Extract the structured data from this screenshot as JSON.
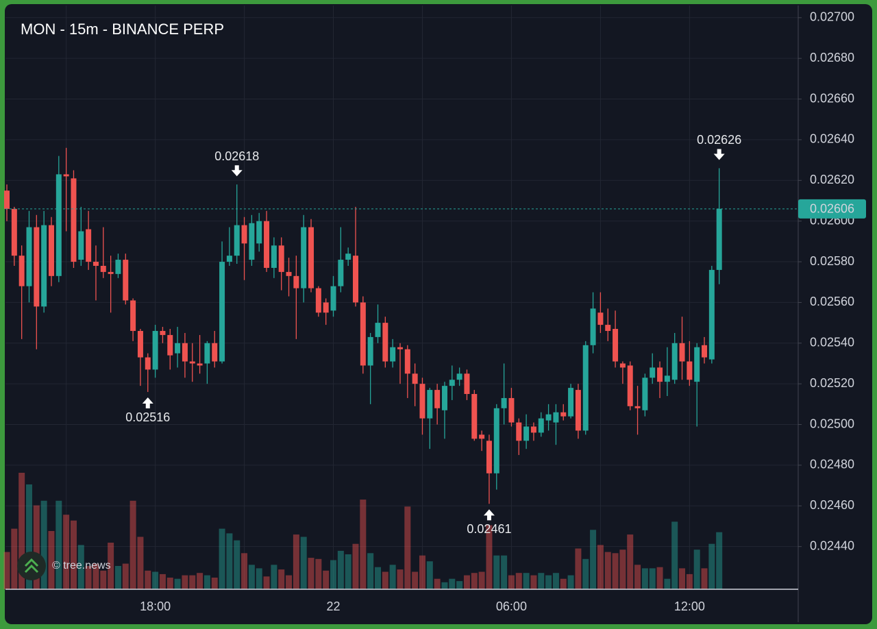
{
  "chart_data": {
    "type": "candlestick",
    "title": "MON - 15m - BINANCE PERP",
    "watermark": "© tree.news",
    "up_color": "#26a69a",
    "down_color": "#ef5350",
    "categories": [
      null,
      null,
      null,
      null,
      null,
      null,
      null,
      null,
      null,
      null,
      null,
      null,
      null,
      null,
      null,
      null,
      null,
      null,
      null,
      null,
      "18:00",
      null,
      null,
      null,
      null,
      null,
      null,
      null,
      null,
      null,
      null,
      null,
      null,
      null,
      null,
      null,
      null,
      null,
      null,
      null,
      null,
      null,
      null,
      null,
      "22",
      null,
      null,
      null,
      null,
      null,
      null,
      null,
      null,
      null,
      null,
      null,
      null,
      null,
      null,
      null,
      null,
      null,
      null,
      null,
      null,
      null,
      null,
      null,
      "06:00",
      null,
      null,
      null,
      null,
      null,
      null,
      null,
      null,
      null,
      null,
      null,
      null,
      null,
      null,
      null,
      null,
      null,
      null,
      null,
      null,
      null,
      null,
      null,
      "12:00",
      null,
      null,
      null,
      null
    ],
    "open": [
      0.02615,
      0.02606,
      0.02583,
      0.02568,
      0.02597,
      0.02558,
      0.02598,
      0.02573,
      0.02623,
      0.02621,
      0.02581,
      0.02596,
      0.0258,
      0.02578,
      0.02575,
      0.02574,
      0.02581,
      0.02561,
      0.02546,
      0.02533,
      0.02527,
      0.02546,
      0.02544,
      0.02535,
      0.0254,
      0.02531,
      0.0253,
      0.0253,
      0.0254,
      0.02531,
      0.0258,
      0.02583,
      0.02598,
      0.02581,
      0.02589,
      0.026,
      0.02577,
      0.02588,
      0.02575,
      0.02573,
      0.02567,
      0.02597,
      0.02567,
      0.0256,
      0.02556,
      0.02568,
      0.02581,
      0.02583,
      0.0256,
      0.02529,
      0.02543,
      0.0255,
      0.02531,
      0.02538,
      0.02537,
      0.02525,
      0.0252,
      0.02503,
      0.02517,
      0.02507,
      0.02519,
      0.02522,
      0.02525,
      0.02515,
      0.02495,
      0.02492,
      0.02476,
      0.02508,
      0.02513,
      0.02501,
      0.02492,
      0.02499,
      0.02496,
      0.02502,
      0.02501,
      0.02506,
      0.02504,
      0.02517,
      0.02497,
      0.02539,
      0.02555,
      0.02549,
      0.02547,
      0.0253,
      0.02529,
      0.02509,
      0.02507,
      0.02523,
      0.02528,
      0.02521,
      0.02522,
      0.0254,
      0.02531,
      0.02521,
      0.02539,
      0.02532,
      0.02576
    ],
    "high": [
      0.02618,
      0.02607,
      0.02588,
      0.02605,
      0.02603,
      0.02605,
      0.02602,
      0.02632,
      0.02636,
      0.02625,
      0.02607,
      0.02605,
      0.02588,
      0.02597,
      0.02583,
      0.02584,
      0.02584,
      0.02562,
      0.02547,
      0.02535,
      0.02549,
      0.02548,
      0.02547,
      0.02548,
      0.02545,
      0.0254,
      0.02544,
      0.02541,
      0.02546,
      0.0259,
      0.02597,
      0.02618,
      0.02602,
      0.02603,
      0.02604,
      0.02605,
      0.02592,
      0.02592,
      0.02582,
      0.02583,
      0.02603,
      0.02601,
      0.02568,
      0.02562,
      0.02573,
      0.02597,
      0.02587,
      0.02607,
      0.02563,
      0.02545,
      0.02559,
      0.02553,
      0.02542,
      0.0254,
      0.02539,
      0.0253,
      0.02523,
      0.02518,
      0.0252,
      0.02521,
      0.02529,
      0.02528,
      0.02527,
      0.02517,
      0.02497,
      0.02495,
      0.0251,
      0.0253,
      0.02518,
      0.02503,
      0.02505,
      0.02501,
      0.02506,
      0.0251,
      0.0251,
      0.0251,
      0.0252,
      0.0252,
      0.02541,
      0.02565,
      0.02565,
      0.02557,
      0.02556,
      0.02531,
      0.02531,
      0.02519,
      0.02525,
      0.02535,
      0.02531,
      0.02538,
      0.02545,
      0.02553,
      0.02541,
      0.0254,
      0.02543,
      0.02578,
      0.02626
    ],
    "low": [
      0.026,
      0.02578,
      0.02542,
      0.0256,
      0.02537,
      0.02555,
      0.02568,
      0.0257,
      0.02595,
      0.02577,
      0.02578,
      0.02576,
      0.02561,
      0.02572,
      0.02555,
      0.02572,
      0.02559,
      0.02541,
      0.02519,
      0.02516,
      0.02523,
      0.0254,
      0.02527,
      0.02528,
      0.02523,
      0.02521,
      0.02525,
      0.0252,
      0.02528,
      0.0253,
      0.02578,
      0.02579,
      0.02571,
      0.02578,
      0.02585,
      0.02575,
      0.02572,
      0.02566,
      0.02563,
      0.02542,
      0.0256,
      0.02565,
      0.02553,
      0.02549,
      0.02553,
      0.02565,
      0.02578,
      0.02558,
      0.02525,
      0.0251,
      0.0254,
      0.02528,
      0.02528,
      0.0252,
      0.02513,
      0.02509,
      0.02495,
      0.02488,
      0.025,
      0.02493,
      0.02512,
      0.02519,
      0.02512,
      0.02492,
      0.02487,
      0.02461,
      0.02468,
      0.025,
      0.02499,
      0.02485,
      0.02488,
      0.02492,
      0.02494,
      0.02497,
      0.0249,
      0.02502,
      0.02503,
      0.02493,
      0.02495,
      0.02535,
      0.02545,
      0.02541,
      0.02528,
      0.0252,
      0.02507,
      0.02495,
      0.02504,
      0.0252,
      0.02513,
      0.02514,
      0.0252,
      0.02522,
      0.02519,
      0.02499,
      0.0253,
      0.0253,
      0.02569
    ],
    "close": [
      0.02606,
      0.02583,
      0.02568,
      0.02597,
      0.02558,
      0.02598,
      0.02573,
      0.02623,
      0.02622,
      0.0258,
      0.02595,
      0.0258,
      0.02578,
      0.02575,
      0.02574,
      0.02581,
      0.02561,
      0.02546,
      0.02533,
      0.02527,
      0.02546,
      0.02544,
      0.02534,
      0.0254,
      0.02531,
      0.0253,
      0.02529,
      0.0254,
      0.02531,
      0.0258,
      0.02583,
      0.02598,
      0.02589,
      0.02599,
      0.026,
      0.02577,
      0.02588,
      0.02575,
      0.02573,
      0.02567,
      0.02597,
      0.02567,
      0.02555,
      0.02555,
      0.02568,
      0.02581,
      0.02584,
      0.0256,
      0.02529,
      0.02543,
      0.0255,
      0.02531,
      0.02538,
      0.02537,
      0.02525,
      0.0252,
      0.02503,
      0.02517,
      0.02508,
      0.02519,
      0.02522,
      0.02525,
      0.02515,
      0.02493,
      0.02493,
      0.02476,
      0.02508,
      0.02513,
      0.02501,
      0.02492,
      0.02499,
      0.02496,
      0.02503,
      0.02505,
      0.02506,
      0.02504,
      0.02518,
      0.02497,
      0.02539,
      0.02557,
      0.02549,
      0.02546,
      0.02531,
      0.02528,
      0.02509,
      0.02508,
      0.02523,
      0.02528,
      0.02521,
      0.02524,
      0.0254,
      0.02531,
      0.02522,
      0.02538,
      0.02533,
      0.02576,
      0.02606
    ],
    "volume": [
      32,
      52,
      100,
      90,
      72,
      76,
      50,
      76,
      64,
      59,
      38,
      20,
      22,
      16,
      40,
      20,
      22,
      76,
      45,
      16,
      15,
      13,
      10,
      9,
      12,
      12,
      14,
      12,
      10,
      52,
      48,
      42,
      31,
      21,
      18,
      11,
      21,
      17,
      12,
      47,
      45,
      27,
      26,
      16,
      25,
      33,
      30,
      39,
      77,
      31,
      19,
      15,
      21,
      17,
      71,
      15,
      29,
      24,
      9,
      6,
      9,
      7,
      12,
      14,
      15,
      55,
      29,
      29,
      12,
      14,
      14,
      12,
      14,
      12,
      14,
      9,
      12,
      35,
      26,
      51,
      38,
      32,
      31,
      34,
      47,
      21,
      18,
      18,
      19,
      9,
      58,
      18,
      13,
      34,
      18,
      39,
      49
    ],
    "ylim": [
      0.02419,
      0.02706
    ],
    "yticks": [
      {
        "value": 0.0244,
        "label": "0.02440"
      },
      {
        "value": 0.0246,
        "label": "0.02460"
      },
      {
        "value": 0.0248,
        "label": "0.02480"
      },
      {
        "value": 0.025,
        "label": "0.02500"
      },
      {
        "value": 0.0252,
        "label": "0.02520"
      },
      {
        "value": 0.0254,
        "label": "0.02540"
      },
      {
        "value": 0.0256,
        "label": "0.02560"
      },
      {
        "value": 0.0258,
        "label": "0.02580"
      },
      {
        "value": 0.026,
        "label": "0.02600"
      },
      {
        "value": 0.0262,
        "label": "0.02620"
      },
      {
        "value": 0.0264,
        "label": "0.02640"
      },
      {
        "value": 0.0266,
        "label": "0.02660"
      },
      {
        "value": 0.0268,
        "label": "0.02680"
      },
      {
        "value": 0.027,
        "label": "0.02700"
      }
    ],
    "grid": true
  }
}
